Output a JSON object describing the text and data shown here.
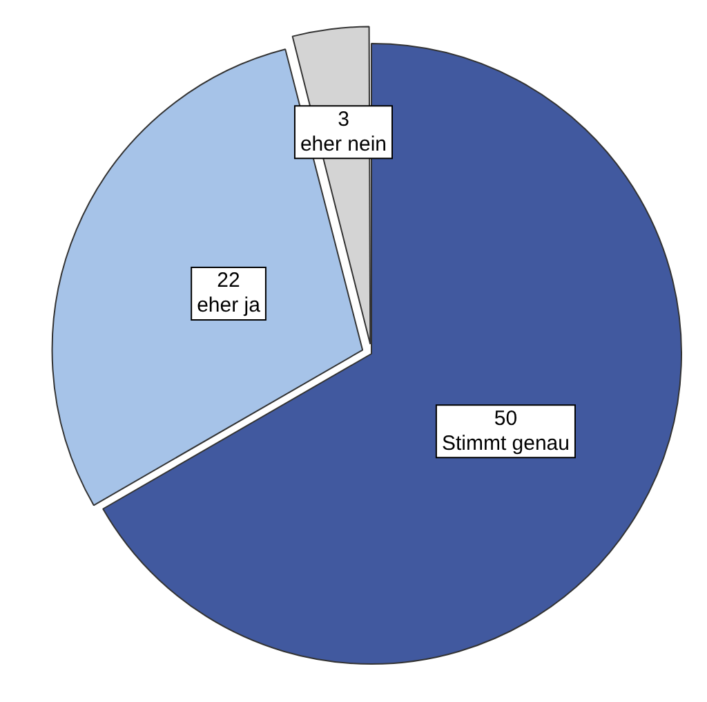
{
  "chart_data": {
    "type": "pie",
    "categories": [
      "Stimmt genau",
      "eher ja",
      "eher nein"
    ],
    "values": [
      50,
      22,
      3
    ],
    "colors": [
      "#41599f",
      "#a6c3e8",
      "#d4d4d4"
    ],
    "data_labels": true,
    "legend": false
  }
}
